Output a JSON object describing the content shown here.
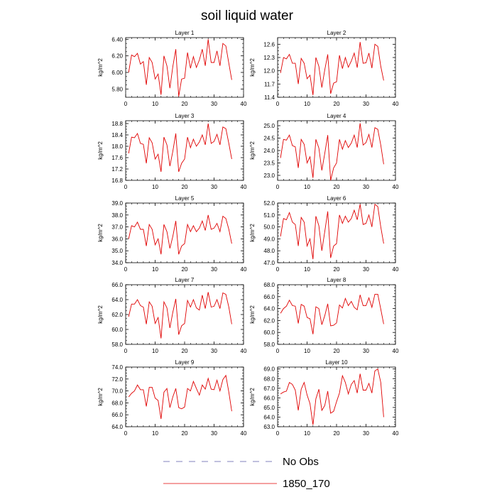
{
  "figure": {
    "title": "soil liquid water",
    "legend": [
      {
        "label": "No Obs",
        "color": "#5a5aa8",
        "dashed": true
      },
      {
        "label": "1850_170",
        "color": "#e00000",
        "dashed": false
      }
    ]
  },
  "chart_data": [
    {
      "type": "line",
      "title": "Layer 1",
      "ylabel": "kg/m^2",
      "xlim": [
        0,
        40
      ],
      "ylim": [
        5.7,
        6.42
      ],
      "xticks": [
        0,
        10,
        20,
        30,
        40
      ],
      "yticks": [
        5.8,
        6.0,
        6.2,
        6.4
      ],
      "ytick_labels": [
        "5.80",
        "6.00",
        "6.20",
        "6.40"
      ],
      "series": [
        {
          "color": "#e00000",
          "x": [
            1,
            2,
            3,
            4,
            5,
            6,
            7,
            8,
            9,
            10,
            11,
            12,
            13,
            14,
            15,
            16,
            17,
            18,
            19,
            20,
            21,
            22,
            23,
            24,
            25,
            26,
            27,
            28,
            29,
            30,
            31,
            32,
            33,
            34,
            35,
            36
          ],
          "y": [
            6.0,
            6.21,
            6.19,
            6.23,
            6.1,
            6.13,
            5.85,
            6.18,
            6.12,
            5.92,
            5.98,
            5.73,
            6.2,
            6.08,
            5.81,
            6.07,
            6.28,
            5.71,
            5.92,
            5.93,
            6.24,
            6.05,
            6.19,
            6.06,
            6.15,
            6.28,
            6.08,
            6.4,
            6.12,
            6.12,
            6.26,
            6.08,
            6.35,
            6.32,
            6.11,
            5.91
          ]
        }
      ]
    },
    {
      "type": "line",
      "title": "Layer 2",
      "ylabel": "kg/m^2",
      "xlim": [
        0,
        40
      ],
      "ylim": [
        11.4,
        12.75
      ],
      "xticks": [
        0,
        10,
        20,
        30,
        40
      ],
      "yticks": [
        11.4,
        11.7,
        12.0,
        12.3,
        12.6
      ],
      "ytick_labels": [
        "11.4",
        "11.7",
        "12.0",
        "12.3",
        "12.6"
      ],
      "series": [
        {
          "color": "#e00000",
          "x": [
            1,
            2,
            3,
            4,
            5,
            6,
            7,
            8,
            9,
            10,
            11,
            12,
            13,
            14,
            15,
            16,
            17,
            18,
            19,
            20,
            21,
            22,
            23,
            24,
            25,
            26,
            27,
            28,
            29,
            30,
            31,
            32,
            33,
            34,
            35,
            36
          ],
          "y": [
            11.95,
            12.3,
            12.27,
            12.37,
            12.17,
            12.17,
            11.7,
            12.28,
            12.17,
            11.82,
            11.9,
            11.45,
            12.3,
            12.1,
            11.62,
            12.02,
            12.37,
            11.48,
            11.72,
            11.75,
            12.35,
            12.05,
            12.3,
            12.08,
            12.22,
            12.4,
            12.07,
            12.65,
            12.17,
            12.18,
            12.4,
            12.06,
            12.6,
            12.55,
            12.1,
            11.78
          ]
        }
      ]
    },
    {
      "type": "line",
      "title": "Layer 3",
      "ylabel": "kg/m^2",
      "xlim": [
        0,
        40
      ],
      "ylim": [
        16.8,
        18.9
      ],
      "xticks": [
        0,
        10,
        20,
        30,
        40
      ],
      "yticks": [
        16.8,
        17.2,
        17.6,
        18.0,
        18.4,
        18.8
      ],
      "ytick_labels": [
        "16.8",
        "17.2",
        "17.6",
        "18.0",
        "18.4",
        "18.8"
      ],
      "series": [
        {
          "color": "#e00000",
          "x": [
            1,
            2,
            3,
            4,
            5,
            6,
            7,
            8,
            9,
            10,
            11,
            12,
            13,
            14,
            15,
            16,
            17,
            18,
            19,
            20,
            21,
            22,
            23,
            24,
            25,
            26,
            27,
            28,
            29,
            30,
            31,
            32,
            33,
            34,
            35,
            36
          ],
          "y": [
            17.75,
            18.32,
            18.3,
            18.45,
            18.1,
            18.07,
            17.4,
            18.3,
            18.12,
            17.55,
            17.72,
            17.1,
            18.32,
            18.05,
            17.3,
            17.82,
            18.45,
            17.1,
            17.4,
            17.55,
            18.32,
            17.95,
            18.25,
            18.0,
            18.15,
            18.4,
            18.05,
            18.8,
            18.1,
            18.17,
            18.42,
            18.05,
            18.68,
            18.62,
            18.1,
            17.55
          ]
        }
      ]
    },
    {
      "type": "line",
      "title": "Layer 4",
      "ylabel": "kg/m^2",
      "xlim": [
        0,
        40
      ],
      "ylim": [
        22.8,
        25.2
      ],
      "xticks": [
        0,
        10,
        20,
        30,
        40
      ],
      "yticks": [
        23.0,
        23.5,
        24.0,
        24.5,
        25.0
      ],
      "ytick_labels": [
        "23.0",
        "23.5",
        "24.0",
        "24.5",
        "25.0"
      ],
      "series": [
        {
          "color": "#e00000",
          "x": [
            1,
            2,
            3,
            4,
            5,
            6,
            7,
            8,
            9,
            10,
            11,
            12,
            13,
            14,
            15,
            16,
            17,
            18,
            19,
            20,
            21,
            22,
            23,
            24,
            25,
            26,
            27,
            28,
            29,
            30,
            31,
            32,
            33,
            34,
            35,
            36
          ],
          "y": [
            23.7,
            24.45,
            24.42,
            24.62,
            24.2,
            24.15,
            23.3,
            24.45,
            24.25,
            23.5,
            23.75,
            22.9,
            24.45,
            24.1,
            23.2,
            23.88,
            24.62,
            22.8,
            23.3,
            23.5,
            24.45,
            24.05,
            24.4,
            24.12,
            24.3,
            24.62,
            24.12,
            25.1,
            24.22,
            24.32,
            24.65,
            24.12,
            24.92,
            24.85,
            24.22,
            23.45
          ]
        }
      ]
    },
    {
      "type": "line",
      "title": "Layer 5",
      "ylabel": "kg/m^2",
      "xlim": [
        0,
        40
      ],
      "ylim": [
        34.0,
        39.0
      ],
      "xticks": [
        0,
        10,
        20,
        30,
        40
      ],
      "yticks": [
        34.0,
        35.0,
        36.0,
        37.0,
        38.0,
        39.0
      ],
      "ytick_labels": [
        "34.0",
        "35.0",
        "36.0",
        "37.0",
        "38.0",
        "39.0"
      ],
      "series": [
        {
          "color": "#e00000",
          "x": [
            1,
            2,
            3,
            4,
            5,
            6,
            7,
            8,
            9,
            10,
            11,
            12,
            13,
            14,
            15,
            16,
            17,
            18,
            19,
            20,
            21,
            22,
            23,
            24,
            25,
            26,
            27,
            28,
            29,
            30,
            31,
            32,
            33,
            34,
            35,
            36
          ],
          "y": [
            36.0,
            37.1,
            37.0,
            37.4,
            36.8,
            36.8,
            35.4,
            37.2,
            36.8,
            35.5,
            36.0,
            34.7,
            37.2,
            36.6,
            35.2,
            36.2,
            37.5,
            34.7,
            35.4,
            35.6,
            37.2,
            36.6,
            37.1,
            36.6,
            36.9,
            37.5,
            36.7,
            38.0,
            36.8,
            36.9,
            37.3,
            36.6,
            37.9,
            37.7,
            36.8,
            35.6
          ]
        }
      ]
    },
    {
      "type": "line",
      "title": "Layer 6",
      "ylabel": "kg/m^2",
      "xlim": [
        0,
        40
      ],
      "ylim": [
        47.0,
        52.0
      ],
      "xticks": [
        0,
        10,
        20,
        30,
        40
      ],
      "yticks": [
        47.0,
        48.0,
        49.0,
        50.0,
        51.0,
        52.0
      ],
      "ytick_labels": [
        "47.0",
        "48.0",
        "49.0",
        "50.0",
        "51.0",
        "52.0"
      ],
      "series": [
        {
          "color": "#e00000",
          "x": [
            1,
            2,
            3,
            4,
            5,
            6,
            7,
            8,
            9,
            10,
            11,
            12,
            13,
            14,
            15,
            16,
            17,
            18,
            19,
            20,
            21,
            22,
            23,
            24,
            25,
            26,
            27,
            28,
            29,
            30,
            31,
            32,
            33,
            34,
            35,
            36
          ],
          "y": [
            49.2,
            50.7,
            50.6,
            51.2,
            50.4,
            50.2,
            48.4,
            50.8,
            50.4,
            48.4,
            49.0,
            47.3,
            50.9,
            50.1,
            48.0,
            49.6,
            51.3,
            47.4,
            48.4,
            48.6,
            51.0,
            50.3,
            50.9,
            50.4,
            50.7,
            51.4,
            50.6,
            51.9,
            50.2,
            50.3,
            51.0,
            50.0,
            51.9,
            51.7,
            50.0,
            48.6
          ]
        }
      ]
    },
    {
      "type": "line",
      "title": "Layer 7",
      "ylabel": "kg/m^2",
      "xlim": [
        0,
        40
      ],
      "ylim": [
        58.0,
        66.0
      ],
      "xticks": [
        0,
        10,
        20,
        30,
        40
      ],
      "yticks": [
        58.0,
        60.0,
        62.0,
        64.0,
        66.0
      ],
      "ytick_labels": [
        "58.0",
        "60.0",
        "62.0",
        "64.0",
        "66.0"
      ],
      "series": [
        {
          "color": "#e00000",
          "x": [
            1,
            2,
            3,
            4,
            5,
            6,
            7,
            8,
            9,
            10,
            11,
            12,
            13,
            14,
            15,
            16,
            17,
            18,
            19,
            20,
            21,
            22,
            23,
            24,
            25,
            26,
            27,
            28,
            29,
            30,
            31,
            32,
            33,
            34,
            35,
            36
          ],
          "y": [
            61.7,
            63.4,
            63.4,
            64.0,
            63.2,
            63.0,
            60.7,
            63.7,
            63.1,
            60.8,
            61.6,
            58.8,
            63.7,
            62.9,
            60.2,
            62.3,
            64.1,
            59.3,
            60.5,
            60.8,
            63.9,
            63.0,
            64.0,
            62.9,
            62.6,
            64.6,
            62.8,
            65.0,
            63.0,
            63.1,
            64.0,
            62.8,
            64.9,
            64.7,
            63.0,
            60.7
          ]
        }
      ]
    },
    {
      "type": "line",
      "title": "Layer 8",
      "ylabel": "kg/m^2",
      "xlim": [
        0,
        40
      ],
      "ylim": [
        58.0,
        68.0
      ],
      "xticks": [
        0,
        10,
        20,
        30,
        40
      ],
      "yticks": [
        58.0,
        60.0,
        62.0,
        64.0,
        66.0,
        68.0
      ],
      "ytick_labels": [
        "58.0",
        "60.0",
        "62.0",
        "64.0",
        "66.0",
        "68.0"
      ],
      "series": [
        {
          "color": "#e00000",
          "x": [
            1,
            2,
            3,
            4,
            5,
            6,
            7,
            8,
            9,
            10,
            11,
            12,
            13,
            14,
            15,
            16,
            17,
            18,
            19,
            20,
            21,
            22,
            23,
            24,
            25,
            26,
            27,
            28,
            29,
            30,
            31,
            32,
            33,
            34,
            35,
            36
          ],
          "y": [
            63.2,
            64.0,
            64.4,
            65.4,
            64.5,
            64.4,
            61.5,
            64.7,
            64.4,
            62.5,
            62.3,
            59.7,
            64.3,
            64.0,
            61.3,
            62.8,
            64.8,
            61.1,
            61.2,
            61.6,
            64.6,
            64.1,
            65.7,
            64.5,
            65.2,
            64.2,
            63.8,
            66.3,
            64.5,
            64.5,
            65.8,
            64.2,
            66.4,
            66.4,
            63.9,
            61.4
          ]
        }
      ]
    },
    {
      "type": "line",
      "title": "Layer 9",
      "ylabel": "kg/m^2",
      "xlim": [
        0,
        40
      ],
      "ylim": [
        64.0,
        74.0
      ],
      "xticks": [
        0,
        10,
        20,
        30,
        40
      ],
      "yticks": [
        64.0,
        66.0,
        68.0,
        70.0,
        72.0,
        74.0
      ],
      "ytick_labels": [
        "64.0",
        "66.0",
        "68.0",
        "70.0",
        "72.0",
        "74.0"
      ],
      "series": [
        {
          "color": "#e00000",
          "x": [
            1,
            2,
            3,
            4,
            5,
            6,
            7,
            8,
            9,
            10,
            11,
            12,
            13,
            14,
            15,
            16,
            17,
            18,
            19,
            20,
            21,
            22,
            23,
            24,
            25,
            26,
            27,
            28,
            29,
            30,
            31,
            32,
            33,
            34,
            35,
            36
          ],
          "y": [
            69.0,
            69.6,
            70.0,
            71.0,
            70.2,
            70.2,
            67.4,
            70.6,
            70.6,
            68.8,
            68.4,
            65.3,
            69.8,
            70.4,
            67.2,
            69.0,
            70.4,
            67.2,
            67.0,
            67.3,
            70.4,
            70.0,
            71.6,
            70.4,
            69.3,
            71.0,
            70.3,
            72.1,
            70.3,
            70.2,
            71.8,
            70.0,
            71.9,
            72.6,
            69.8,
            66.6
          ]
        }
      ]
    },
    {
      "type": "line",
      "title": "Layer 10",
      "ylabel": "kg/m^2",
      "xlim": [
        0,
        40
      ],
      "ylim": [
        63.0,
        69.2
      ],
      "xticks": [
        0,
        10,
        20,
        30,
        40
      ],
      "yticks": [
        63.0,
        64.0,
        65.0,
        66.0,
        67.0,
        68.0,
        69.0
      ],
      "ytick_labels": [
        "63.0",
        "64.0",
        "65.0",
        "66.0",
        "67.0",
        "68.0",
        "69.0"
      ],
      "series": [
        {
          "color": "#e00000",
          "x": [
            1,
            2,
            3,
            4,
            5,
            6,
            7,
            8,
            9,
            10,
            11,
            12,
            13,
            14,
            15,
            16,
            17,
            18,
            19,
            20,
            21,
            22,
            23,
            24,
            25,
            26,
            27,
            28,
            29,
            30,
            31,
            32,
            33,
            34,
            35,
            36
          ],
          "y": [
            66.4,
            66.6,
            66.7,
            67.6,
            67.4,
            66.8,
            64.7,
            66.9,
            67.6,
            66.3,
            65.4,
            63.2,
            65.9,
            66.9,
            64.7,
            65.2,
            66.7,
            64.4,
            64.6,
            65.6,
            66.5,
            68.3,
            67.6,
            66.4,
            67.4,
            67.8,
            66.5,
            68.5,
            66.8,
            66.8,
            67.5,
            66.5,
            68.8,
            69.0,
            67.6,
            64.0
          ]
        }
      ]
    }
  ]
}
